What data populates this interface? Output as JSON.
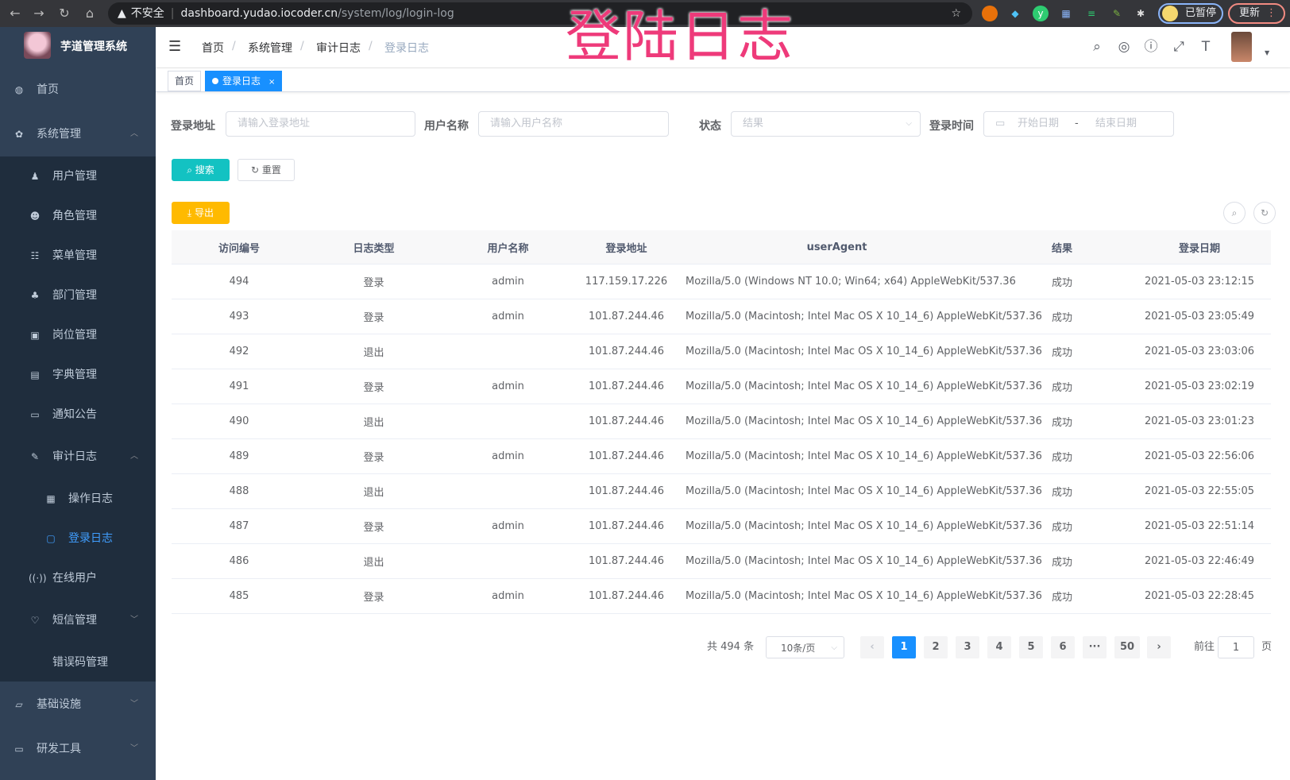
{
  "browser": {
    "warning": "不安全",
    "host": "dashboard.yudao.iocoder.cn",
    "path": "/system/log/login-log",
    "paused": "已暂停",
    "update": "更新"
  },
  "overlay_title": "登陆日志",
  "sidebar": {
    "title": "芋道管理系统",
    "items": [
      {
        "label": "首页",
        "icon": "dashboard-icon"
      },
      {
        "label": "系统管理",
        "icon": "gear-icon",
        "expanded": true
      },
      {
        "label": "用户管理",
        "icon": "user-icon"
      },
      {
        "label": "角色管理",
        "icon": "role-icon"
      },
      {
        "label": "菜单管理",
        "icon": "menu-icon"
      },
      {
        "label": "部门管理",
        "icon": "tree-icon"
      },
      {
        "label": "岗位管理",
        "icon": "post-icon"
      },
      {
        "label": "字典管理",
        "icon": "dict-icon"
      },
      {
        "label": "通知公告",
        "icon": "message-icon"
      },
      {
        "label": "审计日志",
        "icon": "edit-icon",
        "expanded": true
      },
      {
        "label": "操作日志",
        "icon": "form-icon"
      },
      {
        "label": "登录日志",
        "icon": "logininfor-icon",
        "active": true
      },
      {
        "label": "在线用户",
        "icon": "online-icon"
      },
      {
        "label": "短信管理",
        "icon": "sms-icon"
      },
      {
        "label": "错误码管理",
        "icon": "code-icon"
      },
      {
        "label": "基础设施",
        "icon": "monitor-icon"
      },
      {
        "label": "研发工具",
        "icon": "tool-icon"
      }
    ]
  },
  "breadcrumb": [
    "首页",
    "系统管理",
    "审计日志",
    "登录日志"
  ],
  "tags": [
    {
      "label": "首页"
    },
    {
      "label": "登录日志",
      "active": true
    }
  ],
  "filters": {
    "ip": {
      "label": "登录地址",
      "placeholder": "请输入登录地址"
    },
    "username": {
      "label": "用户名称",
      "placeholder": "请输入用户名称"
    },
    "status": {
      "label": "状态",
      "placeholder": "结果"
    },
    "time": {
      "label": "登录时间",
      "start": "开始日期",
      "sep": "-",
      "end": "结束日期"
    }
  },
  "buttons": {
    "search": "搜索",
    "reset": "重置",
    "export": "导出"
  },
  "table": {
    "columns": [
      "访问编号",
      "日志类型",
      "用户名称",
      "登录地址",
      "userAgent",
      "结果",
      "登录日期"
    ],
    "rows": [
      [
        "494",
        "登录",
        "admin",
        "117.159.17.226",
        "Mozilla/5.0 (Windows NT 10.0; Win64; x64) AppleWebKit/537.36",
        "成功",
        "2021-05-03 23:12:15"
      ],
      [
        "493",
        "登录",
        "admin",
        "101.87.244.46",
        "Mozilla/5.0 (Macintosh; Intel Mac OS X 10_14_6) AppleWebKit/537.36",
        "成功",
        "2021-05-03 23:05:49"
      ],
      [
        "492",
        "退出",
        "",
        "101.87.244.46",
        "Mozilla/5.0 (Macintosh; Intel Mac OS X 10_14_6) AppleWebKit/537.36",
        "成功",
        "2021-05-03 23:03:06"
      ],
      [
        "491",
        "登录",
        "admin",
        "101.87.244.46",
        "Mozilla/5.0 (Macintosh; Intel Mac OS X 10_14_6) AppleWebKit/537.36",
        "成功",
        "2021-05-03 23:02:19"
      ],
      [
        "490",
        "退出",
        "",
        "101.87.244.46",
        "Mozilla/5.0 (Macintosh; Intel Mac OS X 10_14_6) AppleWebKit/537.36",
        "成功",
        "2021-05-03 23:01:23"
      ],
      [
        "489",
        "登录",
        "admin",
        "101.87.244.46",
        "Mozilla/5.0 (Macintosh; Intel Mac OS X 10_14_6) AppleWebKit/537.36",
        "成功",
        "2021-05-03 22:56:06"
      ],
      [
        "488",
        "退出",
        "",
        "101.87.244.46",
        "Mozilla/5.0 (Macintosh; Intel Mac OS X 10_14_6) AppleWebKit/537.36",
        "成功",
        "2021-05-03 22:55:05"
      ],
      [
        "487",
        "登录",
        "admin",
        "101.87.244.46",
        "Mozilla/5.0 (Macintosh; Intel Mac OS X 10_14_6) AppleWebKit/537.36",
        "成功",
        "2021-05-03 22:51:14"
      ],
      [
        "486",
        "退出",
        "",
        "101.87.244.46",
        "Mozilla/5.0 (Macintosh; Intel Mac OS X 10_14_6) AppleWebKit/537.36",
        "成功",
        "2021-05-03 22:46:49"
      ],
      [
        "485",
        "登录",
        "admin",
        "101.87.244.46",
        "Mozilla/5.0 (Macintosh; Intel Mac OS X 10_14_6) AppleWebKit/537.36",
        "成功",
        "2021-05-03 22:28:45"
      ]
    ]
  },
  "pagination": {
    "total": "共 494 条",
    "page_size": "10条/页",
    "pages": [
      "1",
      "2",
      "3",
      "4",
      "5",
      "6",
      "···",
      "50"
    ],
    "current": "1",
    "goto_prefix": "前往",
    "goto_value": "1",
    "goto_suffix": "页"
  },
  "colors": {
    "sidebar": "#304156",
    "submenu": "#1f2d3d",
    "primary": "#1890ff",
    "search": "#13c2c2",
    "export": "#ffba00"
  }
}
